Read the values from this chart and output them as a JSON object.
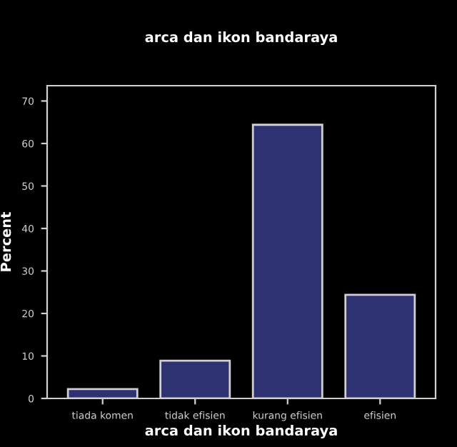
{
  "chart_data": {
    "type": "bar",
    "title": "arca dan ikon bandaraya",
    "xlabel": "arca dan ikon bandaraya",
    "ylabel": "Percent",
    "categories": [
      "tiada komen",
      "tidak efisien",
      "kurang efisien",
      "efisien"
    ],
    "values": [
      2.2,
      8.9,
      64.4,
      24.4
    ],
    "color": "#2e3272",
    "ylim": [
      0,
      73.6
    ],
    "yticks": [
      0,
      10,
      20,
      30,
      40,
      50,
      60,
      70
    ],
    "grid": false,
    "legend": false
  }
}
